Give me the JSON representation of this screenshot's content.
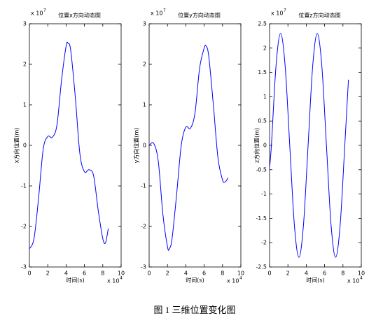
{
  "chart_data": [
    {
      "type": "line",
      "title": "位置x方向动态图",
      "x_label": "时间(s)",
      "y_label": "x方向位置(m)",
      "x_multiplier": "x 10",
      "x_exponent": "4",
      "y_multiplier": "x 10",
      "y_exponent": "7",
      "xlim": [
        0,
        10
      ],
      "xticks": [
        0,
        2,
        4,
        6,
        8,
        10
      ],
      "ylim": [
        -3,
        3
      ],
      "yticks": [
        -3,
        -2,
        -1,
        0,
        1,
        2,
        3
      ],
      "x": [
        0,
        0.5,
        1.0,
        1.5,
        2.0,
        2.5,
        3.0,
        3.5,
        4.0,
        4.2,
        4.5,
        5.0,
        5.5,
        6.0,
        6.5,
        7.0,
        7.5,
        8.0,
        8.3,
        8.6
      ],
      "series": [
        {
          "color": "#0000ff",
          "values": [
            -2.55,
            -2.3,
            -1.3,
            -0.1,
            0.22,
            0.2,
            0.5,
            1.6,
            2.45,
            2.52,
            2.35,
            1.2,
            -0.2,
            -0.65,
            -0.6,
            -0.75,
            -1.6,
            -2.3,
            -2.4,
            -2.05
          ]
        }
      ]
    },
    {
      "type": "line",
      "title": "位置y方向动态图",
      "x_label": "时间(s)",
      "y_label": "y方向位置(m)",
      "x_multiplier": "x 10",
      "x_exponent": "4",
      "y_multiplier": "x 10",
      "y_exponent": "7",
      "xlim": [
        0,
        10
      ],
      "xticks": [
        0,
        2,
        4,
        6,
        8,
        10
      ],
      "ylim": [
        -3,
        3
      ],
      "yticks": [
        -3,
        -2,
        -1,
        0,
        1,
        2,
        3
      ],
      "x": [
        0,
        0.5,
        1.0,
        1.5,
        2.0,
        2.2,
        2.5,
        3.0,
        3.5,
        4.0,
        4.5,
        5.0,
        5.5,
        6.0,
        6.2,
        6.5,
        7.0,
        7.5,
        8.0,
        8.3,
        8.6
      ],
      "series": [
        {
          "color": "#0000ff",
          "values": [
            0.0,
            0.05,
            -0.4,
            -1.7,
            -2.5,
            -2.55,
            -2.3,
            -1.2,
            0,
            0.45,
            0.42,
            0.8,
            1.9,
            2.4,
            2.45,
            2.2,
            1.0,
            -0.3,
            -0.85,
            -0.9,
            -0.8
          ]
        }
      ]
    },
    {
      "type": "line",
      "title": "位置z方向动态图",
      "x_label": "时间(s)",
      "y_label": "z方向位置(m)",
      "x_multiplier": "x 10",
      "x_exponent": "4",
      "y_multiplier": "x 10",
      "y_exponent": "7",
      "xlim": [
        0,
        10
      ],
      "xticks": [
        0,
        2,
        4,
        6,
        8,
        10
      ],
      "ylim": [
        -2.5,
        2.5
      ],
      "yticks": [
        -2.5,
        -2,
        -1.5,
        -1,
        -0.5,
        0,
        0.5,
        1,
        1.5,
        2,
        2.5
      ],
      "x": [
        0,
        0.2,
        0.7,
        1.2,
        1.7,
        2.2,
        2.7,
        3.2,
        3.7,
        4.2,
        4.7,
        5.2,
        5.7,
        6.2,
        6.7,
        7.2,
        7.7,
        8.2,
        8.6
      ],
      "series": [
        {
          "color": "#0000ff",
          "values": [
            -0.45,
            0,
            1.626,
            2.3,
            1.626,
            0,
            -1.626,
            -2.3,
            -1.626,
            0,
            1.626,
            2.3,
            1.626,
            0,
            -1.626,
            -2.3,
            -1.626,
            0,
            1.35
          ]
        }
      ]
    }
  ],
  "caption": "图 1 三维位置变化图"
}
